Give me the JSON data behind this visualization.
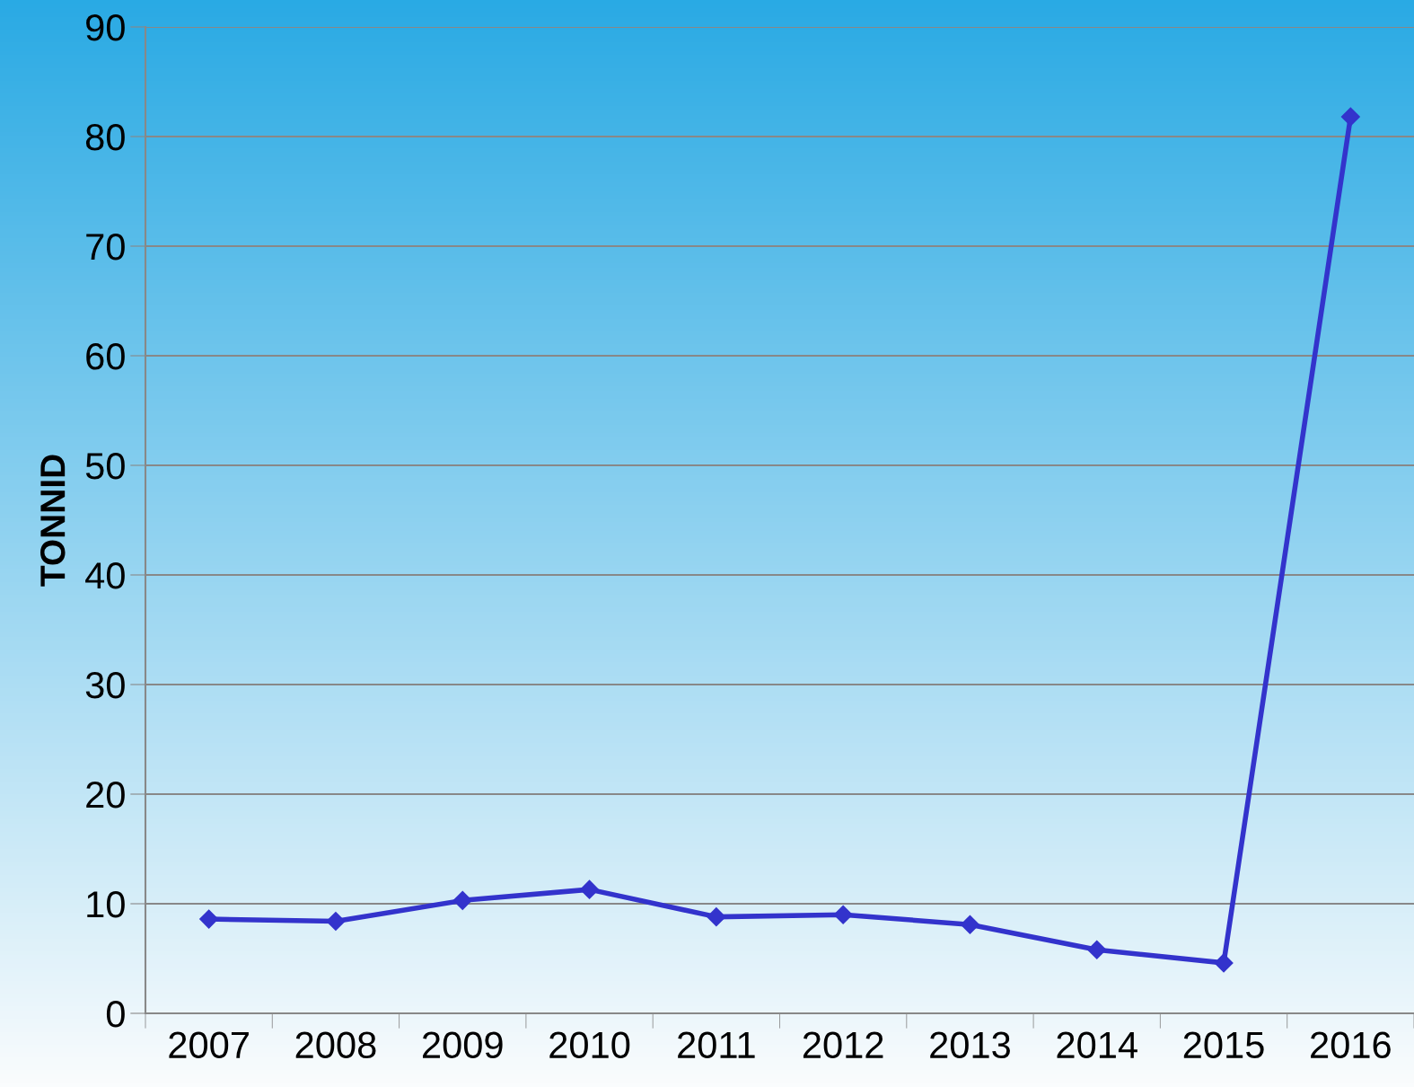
{
  "chart_data": {
    "type": "line",
    "ylabel": "TONNID",
    "categories": [
      "2007",
      "2008",
      "2009",
      "2010",
      "2011",
      "2012",
      "2013",
      "2014",
      "2015",
      "2016"
    ],
    "series": [
      {
        "color": "#3333cc",
        "values": [
          8.6,
          8.4,
          10.3,
          11.3,
          8.8,
          9.0,
          8.1,
          5.8,
          4.6,
          81.8
        ]
      }
    ],
    "ylim": [
      0,
      90
    ],
    "yticks": [
      0,
      10,
      20,
      30,
      40,
      50,
      60,
      70,
      80,
      90
    ],
    "grid": "y",
    "marker": "diamond",
    "line_style": "solid"
  }
}
